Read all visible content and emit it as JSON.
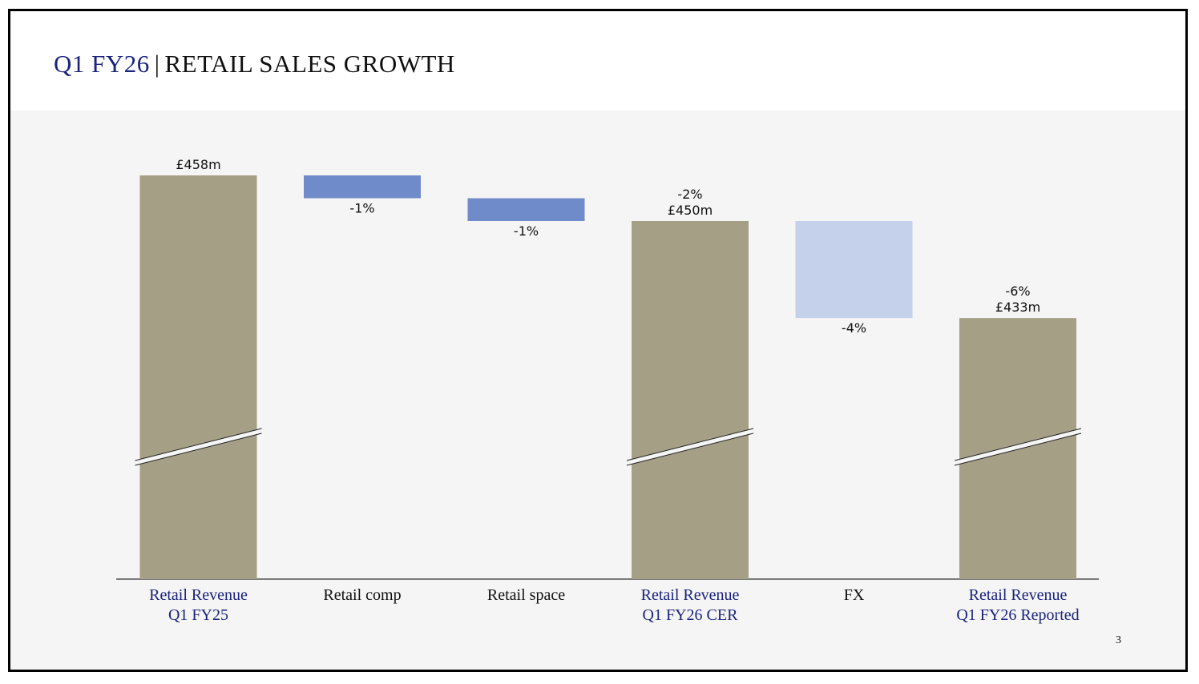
{
  "slide": {
    "title_accent": "Q1 FY26",
    "title_separator": "|",
    "title_main": "RETAIL SALES GROWTH",
    "page_number": "3"
  },
  "colors": {
    "total_bar": "#a59f86",
    "decrease_bar": "#6f8bc9",
    "fx_bar": "#c5d0eb",
    "total_label": "#1a237e",
    "step_label": "#111111"
  },
  "chart_data": {
    "type": "bar",
    "subtype": "waterfall",
    "title": "",
    "xlabel": "",
    "ylabel": "",
    "axis_break": true,
    "grid": false,
    "legend": "none",
    "units": "£m",
    "categories": [
      [
        "Retail Revenue",
        "Q1 FY25"
      ],
      [
        "Retail comp"
      ],
      [
        "Retail space"
      ],
      [
        "Retail Revenue",
        "Q1 FY26 CER"
      ],
      [
        "FX"
      ],
      [
        "Retail Revenue",
        "Q1 FY26 Reported"
      ]
    ],
    "bars": [
      {
        "kind": "total",
        "value": 458,
        "labels": [
          "£458m"
        ]
      },
      {
        "kind": "step",
        "change_pct": -1,
        "from": 458,
        "to": 454,
        "labels": [
          "-1%"
        ]
      },
      {
        "kind": "step",
        "change_pct": -1,
        "from": 454,
        "to": 450,
        "labels": [
          "-1%"
        ]
      },
      {
        "kind": "total",
        "value": 450,
        "labels": [
          "-2%",
          "£450m"
        ]
      },
      {
        "kind": "step",
        "change_pct": -4,
        "from": 450,
        "to": 433,
        "labels": [
          "-4%"
        ]
      },
      {
        "kind": "total",
        "value": 433,
        "labels": [
          "-6%",
          "£433m"
        ]
      }
    ]
  }
}
